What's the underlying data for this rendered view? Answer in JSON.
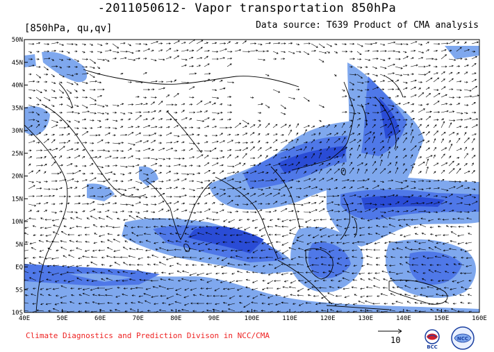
{
  "header": {
    "title": "-2011050612- Vapor transportation 850hPa",
    "level_vars": "[850hPa, qu,qv]",
    "data_source": "Data source: T639 Product of CMA analysis"
  },
  "axes": {
    "x_ticks": [
      "40E",
      "50E",
      "60E",
      "70E",
      "80E",
      "90E",
      "100E",
      "110E",
      "120E",
      "130E",
      "140E",
      "150E",
      "160E"
    ],
    "y_ticks": [
      "50N",
      "45N",
      "40N",
      "35N",
      "30N",
      "25N",
      "20N",
      "15N",
      "10N",
      "5N",
      "EQ",
      "5S",
      "10S"
    ]
  },
  "footer": {
    "credit": "Climate Diagnostics and Prediction Divison in NCC/CMA",
    "ref_vector_value": "10"
  },
  "logos": [
    {
      "name": "bcc-logo",
      "text": "BCC"
    },
    {
      "name": "ncc-logo",
      "text": "NCC"
    }
  ],
  "colors": {
    "shade_light": "#7fa8ee",
    "shade_mid": "#4f78e8",
    "shade_dark": "#2a4cd6",
    "land": "#ffffff"
  }
}
